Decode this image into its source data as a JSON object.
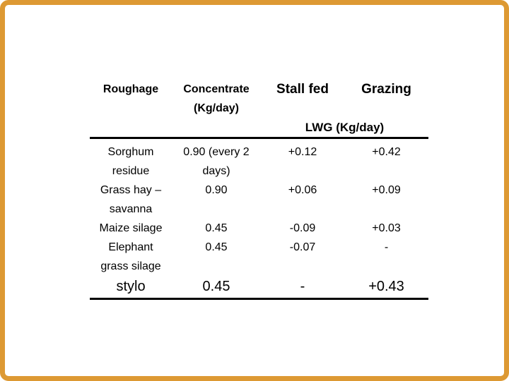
{
  "slide": {
    "background_color": "#ffffff",
    "frame_color": "#dd9933",
    "text_color": "#000000",
    "rule_color": "#000000"
  },
  "table": {
    "header": {
      "roughage": "Roughage",
      "concentrate": "Concentrate\n(Kg/day)",
      "stall_fed": "Stall fed",
      "grazing": "Grazing",
      "lwg_span": "LWG (Kg/day)"
    },
    "rows": [
      {
        "roughage": "Sorghum\nresidue",
        "concentrate": "0.90 (every 2\ndays)",
        "stall_fed": "+0.12",
        "grazing": "+0.42",
        "large": false
      },
      {
        "roughage": "Grass hay –\nsavanna",
        "concentrate": "0.90",
        "stall_fed": "+0.06",
        "grazing": "+0.09",
        "large": false
      },
      {
        "roughage": "Maize silage",
        "concentrate": "0.45",
        "stall_fed": "-0.09",
        "grazing": "+0.03",
        "large": false
      },
      {
        "roughage": "Elephant\ngrass silage",
        "concentrate": "0.45",
        "stall_fed": "-0.07",
        "grazing": "-",
        "large": false
      },
      {
        "roughage": "stylo",
        "concentrate": "0.45",
        "stall_fed": "-",
        "grazing": "+0.43",
        "large": true
      }
    ]
  }
}
